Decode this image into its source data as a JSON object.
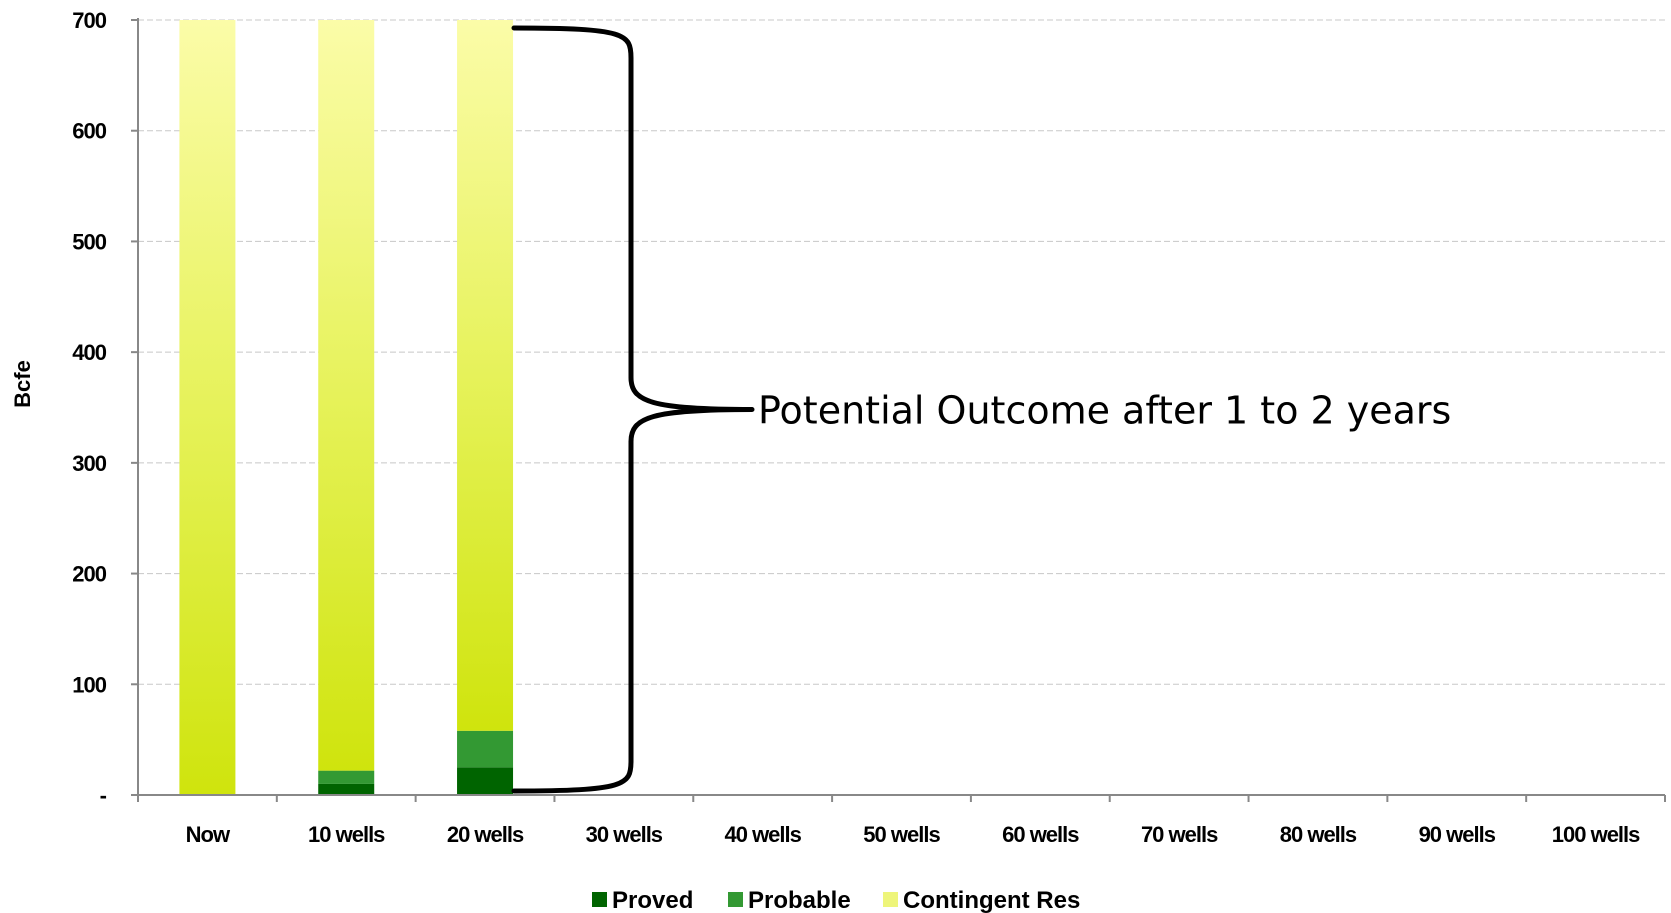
{
  "chart_data": {
    "type": "bar",
    "stacked": true,
    "ylabel": "Bcfe",
    "ylim": [
      0,
      700
    ],
    "yticks": [
      0,
      100,
      200,
      300,
      400,
      500,
      600,
      700
    ],
    "ytick_labels": [
      "-",
      "100",
      "200",
      "300",
      "400",
      "500",
      "600",
      "700"
    ],
    "categories": [
      "Now",
      "10 wells",
      "20 wells",
      "30 wells",
      "40 wells",
      "50 wells",
      "60 wells",
      "70 wells",
      "80 wells",
      "90 wells",
      "100 wells"
    ],
    "series": [
      {
        "name": "Proved",
        "color": "#006400",
        "values": [
          0,
          10,
          25,
          null,
          null,
          null,
          null,
          null,
          null,
          null,
          null
        ]
      },
      {
        "name": "Probable",
        "color": "#339933",
        "values": [
          0,
          12,
          33,
          null,
          null,
          null,
          null,
          null,
          null,
          null,
          null
        ]
      },
      {
        "name": "Contingent Res",
        "color": "#d4e81a",
        "values": [
          700,
          678,
          642,
          null,
          null,
          null,
          null,
          null,
          null,
          null,
          null
        ]
      }
    ],
    "grid": true,
    "legend": "bottom",
    "annotation": {
      "text": "Potential Outcome after 1 to 2 years",
      "bracket_from": 0,
      "bracket_to": 700
    }
  }
}
